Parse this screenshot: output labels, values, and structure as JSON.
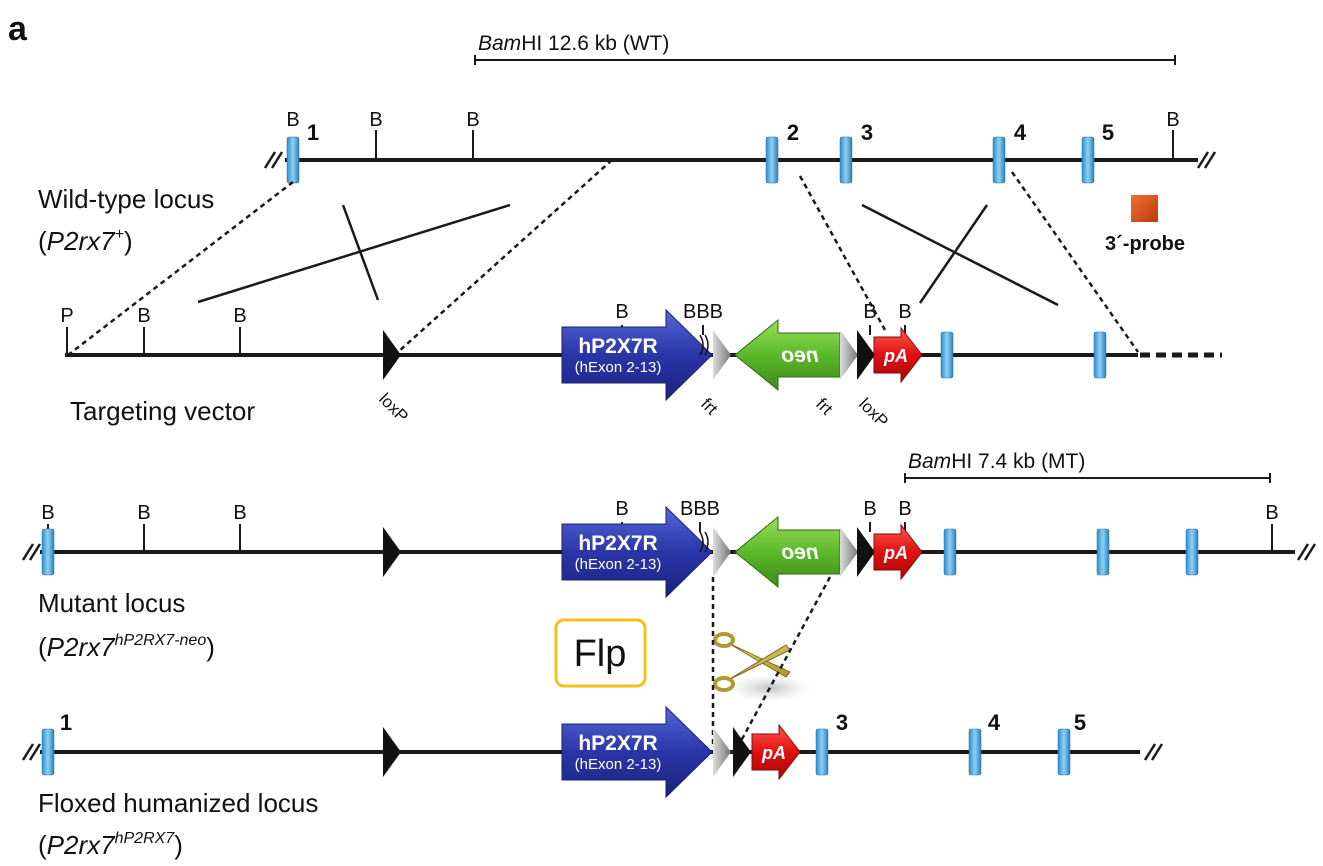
{
  "panel_label": "a",
  "wild_type": {
    "fragment": {
      "enzyme": "Bam",
      "size": "HI 12.6 kb (WT)"
    },
    "sites": [
      "B",
      "B",
      "B",
      "B"
    ],
    "exons": [
      "1",
      "2",
      "3",
      "4",
      "5"
    ],
    "probe": "3´-probe",
    "label": "Wild-type locus",
    "genotype": [
      "(",
      "P2rx7",
      "+",
      ")"
    ]
  },
  "targeting_vector": {
    "sites": [
      "P",
      "B",
      "B",
      "B",
      "BBB",
      "B",
      "B"
    ],
    "cassette": [
      "hP2X7R",
      "(hExon 2-13)"
    ],
    "selection": "neo",
    "polya": "pA",
    "elements": [
      "loxP",
      "frt",
      "frt",
      "loxP"
    ],
    "label": "Targeting vector"
  },
  "mutant": {
    "fragment": {
      "enzyme": "Bam",
      "size": "HI 7.4 kb (MT)"
    },
    "sites": [
      "B",
      "B",
      "B",
      "B",
      "BBB",
      "B",
      "B",
      "B"
    ],
    "cassette": [
      "hP2X7R",
      "(hExon 2-13)"
    ],
    "selection": "neo",
    "polya": "pA",
    "label": "Mutant locus",
    "genotype": [
      "(",
      "P2rx7",
      "hP2RX7-neo",
      ")"
    ]
  },
  "recombinase": "Flp",
  "floxed": {
    "exons": [
      "1",
      "3",
      "4",
      "5"
    ],
    "cassette": [
      "hP2X7R",
      "(hExon 2-13)"
    ],
    "polya": "pA",
    "label": "Floxed humanized locus",
    "genotype": [
      "(",
      "P2rx7",
      "hP2RX7",
      ")"
    ]
  }
}
